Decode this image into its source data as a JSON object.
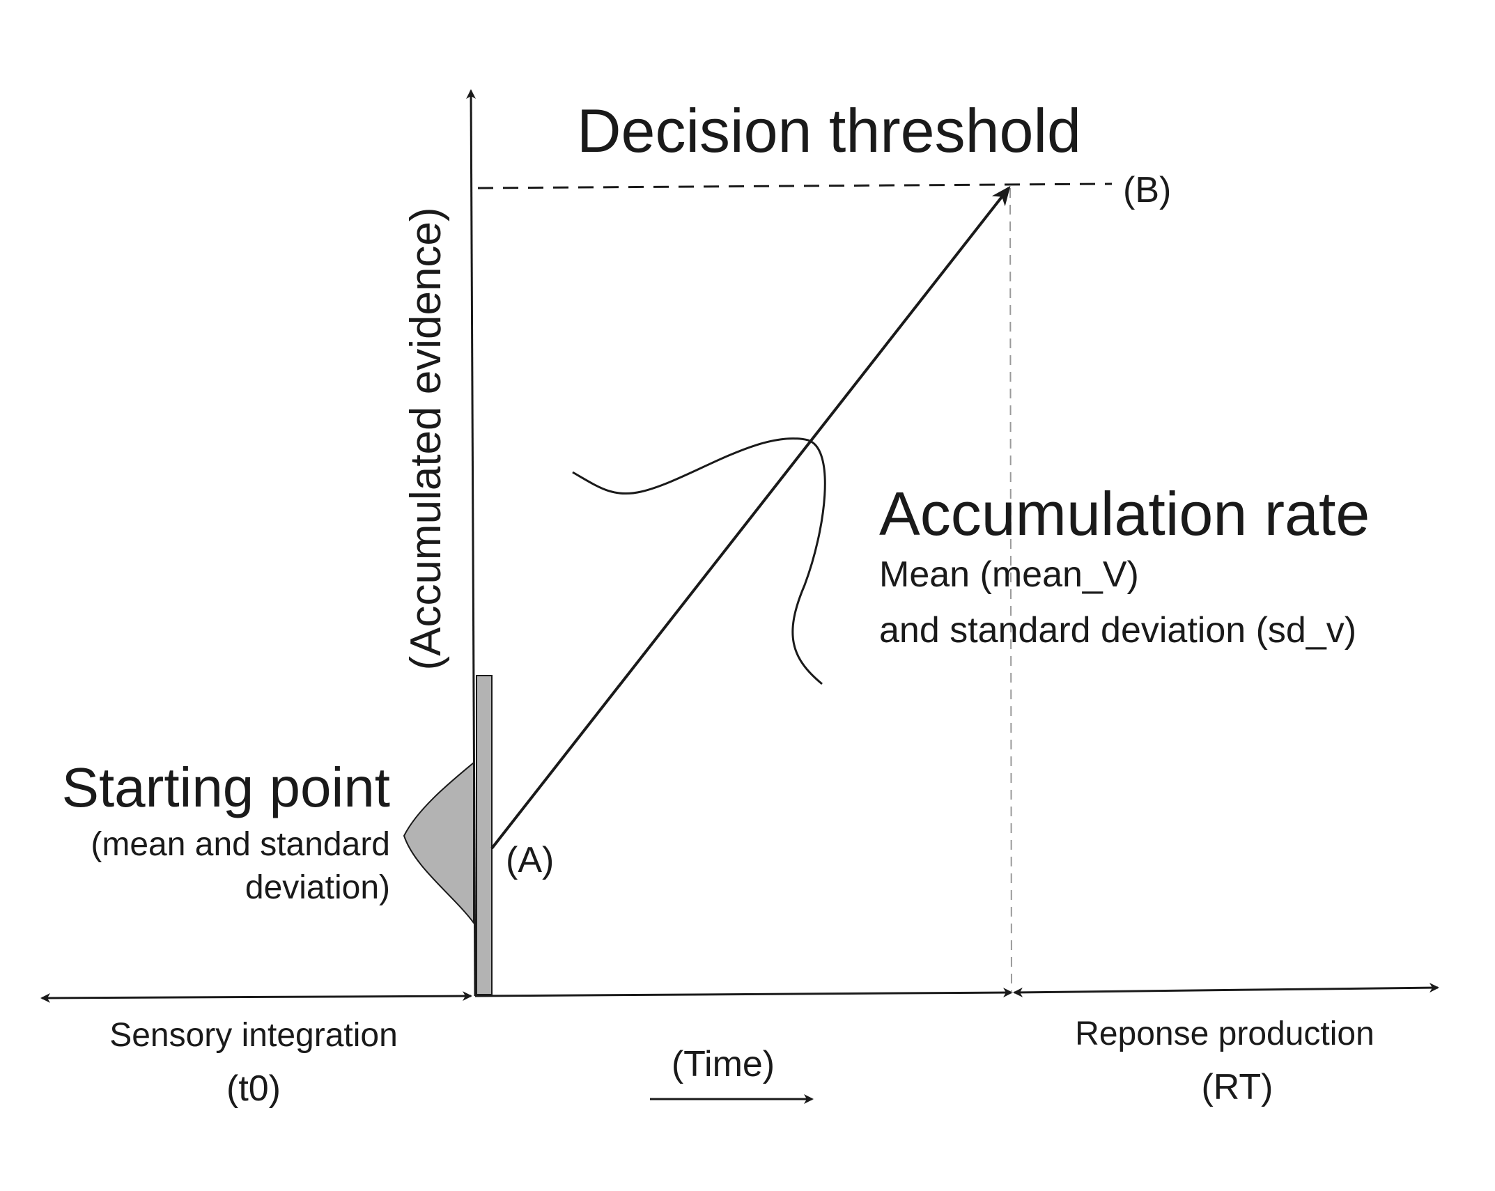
{
  "labels": {
    "y_axis": "(Accumulated evidence)",
    "decision_threshold": "Decision threshold",
    "point_b": "(B)",
    "point_a": "(A)",
    "accumulation_rate_title": "Accumulation rate",
    "accumulation_rate_line1": "Mean (mean_V)",
    "accumulation_rate_line2": "and standard deviation (sd_v)",
    "starting_point_title": "Starting point",
    "starting_point_line1": "(mean and standard",
    "starting_point_line2": "deviation)",
    "sensory_integration": "Sensory integration",
    "sensory_integration_symbol": "(t0)",
    "time": "(Time)",
    "response_production": "Reponse production",
    "response_production_symbol": "(RT)"
  },
  "colors": {
    "ink": "#1a1a1a",
    "fill_gray": "#b3b3b3",
    "guide_gray": "#9a9a9a"
  }
}
